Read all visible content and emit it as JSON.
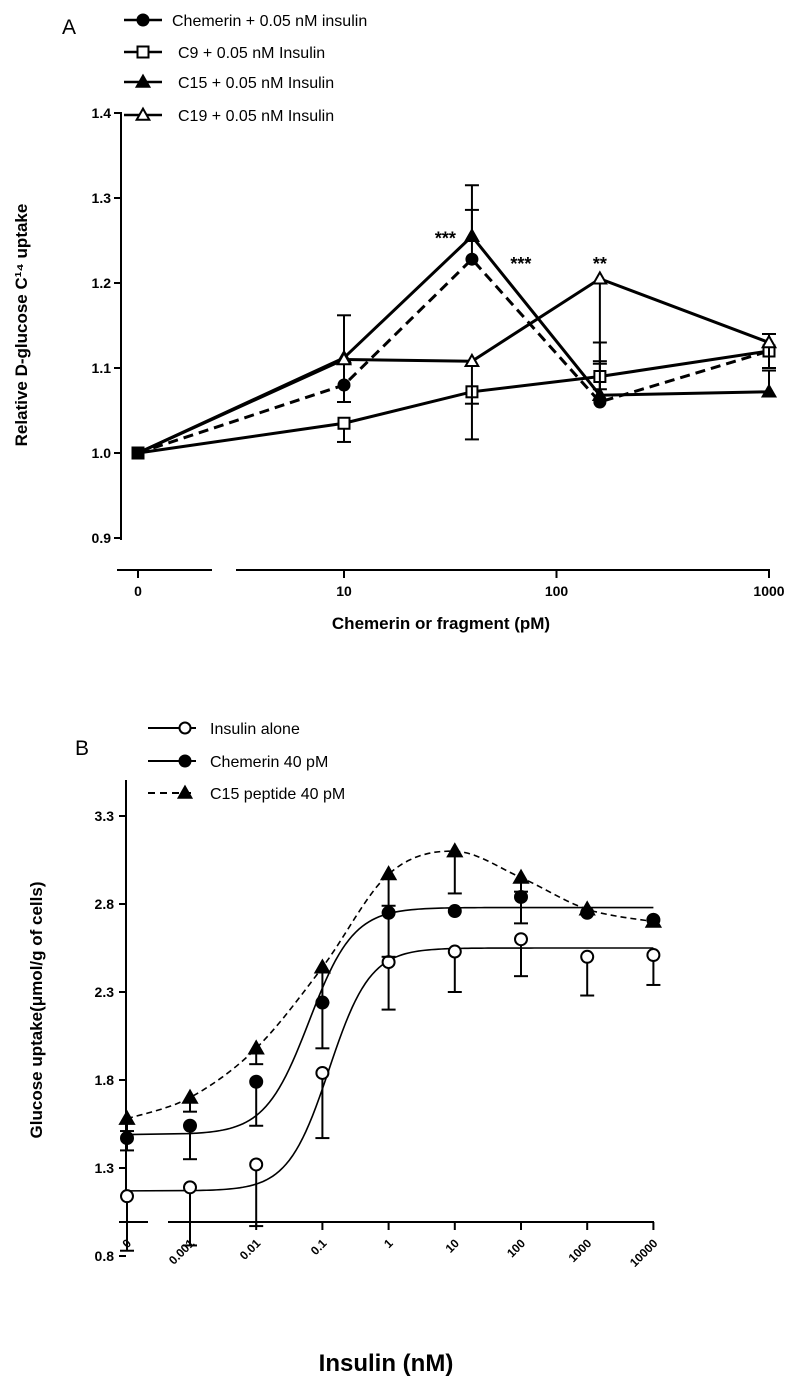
{
  "chart_data": [
    {
      "type": "line",
      "panel_label": "A",
      "xlabel": "Chemerin or fragment (pM)",
      "ylabel": "Relative D-glucose C¹⁴ uptake",
      "xscale": "log-with-broken-zero",
      "x_ticks": [
        "0",
        "10",
        "100",
        "1000"
      ],
      "y_ticks": [
        "0.9",
        "1.0",
        "1.1",
        "1.2",
        "1.3",
        "1.4"
      ],
      "ylim": [
        0.9,
        1.4
      ],
      "grid": false,
      "legend_position": "top",
      "series": [
        {
          "name": "Chemerin + 0.05 nM insulin",
          "marker": "filled-circle",
          "line": "dashed",
          "x": [
            0,
            10,
            40,
            160,
            1000
          ],
          "y": [
            1.0,
            1.08,
            1.228,
            1.06,
            1.12
          ],
          "err": [
            0,
            0.028,
            0.058,
            0.048,
            0.02
          ]
        },
        {
          "name": "C9 + 0.05 nM Insulin",
          "marker": "open-square",
          "line": "solid",
          "x": [
            0,
            10,
            40,
            160,
            1000
          ],
          "y": [
            1.0,
            1.035,
            1.072,
            1.09,
            1.12
          ],
          "err": [
            0,
            0.022,
            0.056,
            0.015,
            0.02
          ]
        },
        {
          "name": "C15 + 0.05 nM Insulin",
          "marker": "filled-triangle",
          "line": "solid",
          "x": [
            0,
            10,
            40,
            160,
            1000
          ],
          "y": [
            1.0,
            1.112,
            1.255,
            1.068,
            1.072
          ],
          "err": [
            0,
            0.05,
            0.06,
            0.062,
            0.025
          ]
        },
        {
          "name": "C19 + 0.05 nM Insulin",
          "marker": "open-triangle",
          "line": "solid",
          "x": [
            0,
            10,
            40,
            160,
            1000
          ],
          "y": [
            1.0,
            1.11,
            1.108,
            1.205,
            1.13
          ],
          "err": [
            0,
            0.05,
            0.05,
            0.1,
            0.03
          ]
        }
      ],
      "annotations": [
        {
          "text": "***",
          "x": 30,
          "y": 1.255
        },
        {
          "text": "***",
          "x": 68,
          "y": 1.225
        },
        {
          "text": "**",
          "x": 160,
          "y": 1.225
        }
      ]
    },
    {
      "type": "scatter-with-fit",
      "panel_label": "B",
      "xlabel": "Insulin (nM)",
      "ylabel": "Glucose uptake(μmol/g of cells)",
      "xscale": "log-with-broken-zero",
      "x_ticks": [
        "0",
        "0.001",
        "0.01",
        "0.1",
        "1",
        "10",
        "100",
        "1000",
        "10000"
      ],
      "y_ticks": [
        "0.8",
        "1.3",
        "1.8",
        "2.3",
        "2.8",
        "3.3"
      ],
      "ylim": [
        0.8,
        3.4
      ],
      "grid": false,
      "legend_position": "top-left",
      "series": [
        {
          "name": "Insulin alone",
          "marker": "open-circle",
          "line": "solid",
          "x": [
            0,
            0.001,
            0.01,
            0.1,
            1,
            10,
            100,
            1000,
            10000
          ],
          "y": [
            1.14,
            1.19,
            1.32,
            1.84,
            2.47,
            2.53,
            2.6,
            2.5,
            2.51
          ],
          "err": [
            0.31,
            0.33,
            0.35,
            0.37,
            0.27,
            0.23,
            0.21,
            0.22,
            0.17
          ],
          "fit": {
            "bottom": 1.17,
            "top": 2.55,
            "logEC50": -0.9,
            "hill": 1.4
          }
        },
        {
          "name": "Chemerin 40 pM",
          "marker": "filled-circle",
          "line": "solid",
          "x": [
            0,
            0.001,
            0.01,
            0.1,
            1,
            10,
            100,
            1000,
            10000
          ],
          "y": [
            1.47,
            1.54,
            1.79,
            2.24,
            2.75,
            2.76,
            2.84,
            2.75,
            2.71
          ],
          "err": [
            0.07,
            0.19,
            0.25,
            0.26,
            0.25,
            0.0,
            0.15,
            0.0,
            0.0
          ],
          "fit": {
            "bottom": 1.49,
            "top": 2.78,
            "logEC50": -1.2,
            "hill": 1.3
          }
        },
        {
          "name": "C15 peptide 40 pM",
          "marker": "filled-triangle",
          "line": "dashed",
          "x": [
            0,
            0.001,
            0.01,
            0.1,
            1,
            10,
            100,
            1000,
            10000
          ],
          "y": [
            1.58,
            1.7,
            1.98,
            2.44,
            2.97,
            3.1,
            2.95,
            2.77,
            2.7
          ],
          "err": [
            0.07,
            0.08,
            0.09,
            0.2,
            0.18,
            0.24,
            0.08,
            0.0,
            0.0
          ]
        }
      ]
    }
  ]
}
